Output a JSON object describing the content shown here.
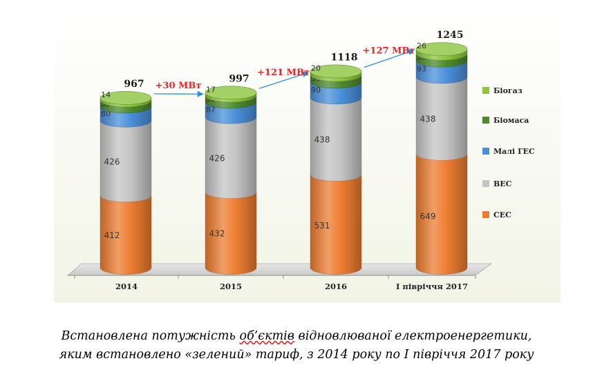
{
  "chart_data": {
    "type": "bar",
    "style": "stacked cylinder (3D)",
    "categories": [
      "2014",
      "2015",
      "2016",
      "I півріччя 2017"
    ],
    "series": [
      {
        "name": "СЕС",
        "color": "#ed7d31",
        "values": [
          412,
          432,
          531,
          649
        ]
      },
      {
        "name": "ВЕС",
        "color": "#c4c4c4",
        "values": [
          426,
          426,
          438,
          438
        ]
      },
      {
        "name": "Малі ГЕС",
        "color": "#4a90d9",
        "values": [
          80,
          87,
          90,
          93
        ]
      },
      {
        "name": "Біомаса",
        "color": "#4e8a2c",
        "values": [
          35,
          35,
          39,
          39
        ]
      },
      {
        "name": "Біогаз",
        "color": "#8cc63f",
        "values": [
          14,
          17,
          20,
          26
        ]
      }
    ],
    "totals": [
      "967",
      "997",
      "1118",
      "1245"
    ],
    "increments": [
      "+30 МВт",
      "+121 МВт",
      "+127 МВт"
    ],
    "legend_order": [
      "Біогаз",
      "Біомаса",
      "Малі ГЕС",
      "ВЕС",
      "СЕС"
    ],
    "legend_position": "right",
    "ylim": [
      0,
      1300
    ],
    "grid": false,
    "background_color": "#f2f4e6",
    "increment_color": "#e32626",
    "arrow_color": "#2e8fd8"
  },
  "caption": {
    "line1_prefix": "Встановлена потужність",
    "line1_word": "об’єктів",
    "line1_suffix": "відновлюваної електроенергетики,",
    "line2": "яким встановлено «зелений» тариф, з 2014 року по І півріччя 2017 року"
  }
}
